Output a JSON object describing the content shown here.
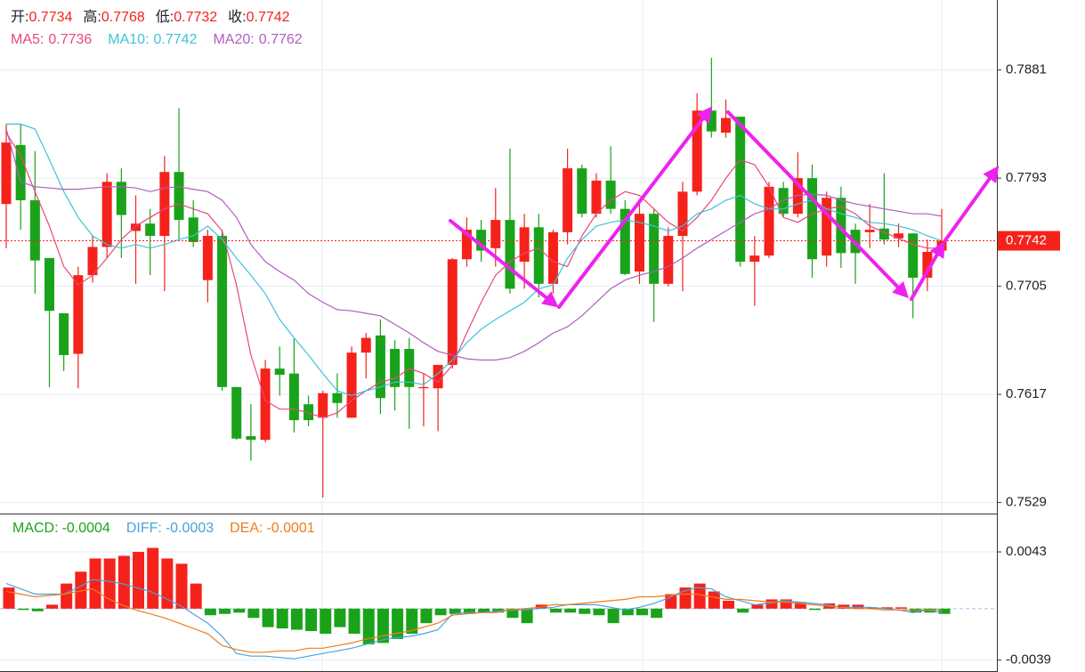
{
  "chart_data": [
    {
      "type": "candlestick",
      "quote": [
        {
          "label": "开:",
          "value": 0.7734
        },
        {
          "label": "高:",
          "value": 0.7768
        },
        {
          "label": "低:",
          "value": 0.7732
        },
        {
          "label": "收:",
          "value": 0.7742
        }
      ],
      "up_color": "#f5221b",
      "down_color": "#1aa31a",
      "open": [
        0.7772,
        0.782,
        0.7775,
        0.7728,
        0.7683,
        0.765,
        0.7714,
        0.7737,
        0.779,
        0.775,
        0.7756,
        0.7746,
        0.7798,
        0.7761,
        0.771,
        0.7746,
        0.7623,
        0.7583,
        0.758,
        0.7638,
        0.7634,
        0.7609,
        0.7598,
        0.7618,
        0.7598,
        0.7651,
        0.7665,
        0.7654,
        0.7654,
        0.7622,
        0.7622,
        0.7641,
        0.7727,
        0.7751,
        0.7736,
        0.7759,
        0.7725,
        0.7753,
        0.7707,
        0.7749,
        0.7801,
        0.7764,
        0.7791,
        0.7768,
        0.7717,
        0.7764,
        0.7707,
        0.7746,
        0.7782,
        0.7848,
        0.783,
        0.7843,
        0.7725,
        0.773,
        0.7785,
        0.7764,
        0.7793,
        0.773,
        0.7777,
        0.7751,
        0.7749,
        0.7752,
        0.7744,
        0.7748,
        0.7712,
        0.7734
      ],
      "high": [
        0.7837,
        0.7837,
        0.7815,
        0.7728,
        0.7683,
        0.7721,
        0.7746,
        0.7797,
        0.7801,
        0.7779,
        0.7768,
        0.7811,
        0.785,
        0.7775,
        0.7751,
        0.7751,
        0.7623,
        0.7609,
        0.7645,
        0.7656,
        0.7663,
        0.7616,
        0.762,
        0.7634,
        0.7656,
        0.7667,
        0.7678,
        0.7661,
        0.7663,
        0.7634,
        0.7641,
        0.7728,
        0.7761,
        0.7759,
        0.7785,
        0.7817,
        0.7764,
        0.7764,
        0.7751,
        0.7817,
        0.7804,
        0.7797,
        0.7819,
        0.7775,
        0.7772,
        0.7768,
        0.7753,
        0.779,
        0.7862,
        0.7891,
        0.7857,
        0.7843,
        0.7746,
        0.779,
        0.779,
        0.7814,
        0.7804,
        0.7782,
        0.7786,
        0.7756,
        0.7772,
        0.7797,
        0.7756,
        0.7748,
        0.7743,
        0.7768
      ],
      "low": [
        0.7736,
        0.7751,
        0.7699,
        0.7623,
        0.7636,
        0.7622,
        0.7708,
        0.7728,
        0.7728,
        0.7707,
        0.7714,
        0.7701,
        0.7743,
        0.7737,
        0.7692,
        0.762,
        0.758,
        0.7563,
        0.7578,
        0.7616,
        0.7586,
        0.7591,
        0.7533,
        0.7598,
        0.7598,
        0.763,
        0.7601,
        0.7604,
        0.7589,
        0.7591,
        0.7587,
        0.7638,
        0.7721,
        0.7725,
        0.7721,
        0.7699,
        0.7703,
        0.7696,
        0.7699,
        0.7739,
        0.7761,
        0.7761,
        0.7764,
        0.7714,
        0.7707,
        0.7676,
        0.7705,
        0.7701,
        0.7779,
        0.7826,
        0.7826,
        0.7721,
        0.7689,
        0.7728,
        0.7761,
        0.7761,
        0.7712,
        0.7721,
        0.772,
        0.7707,
        0.7736,
        0.7739,
        0.7737,
        0.7679,
        0.7701,
        0.7732
      ],
      "close": [
        0.7822,
        0.7775,
        0.7726,
        0.7685,
        0.7649,
        0.7714,
        0.7737,
        0.779,
        0.7763,
        0.7756,
        0.7746,
        0.7798,
        0.7759,
        0.7741,
        0.7746,
        0.7623,
        0.7581,
        0.758,
        0.7638,
        0.7633,
        0.7596,
        0.7596,
        0.7618,
        0.761,
        0.7651,
        0.7663,
        0.7614,
        0.7623,
        0.7623,
        0.7623,
        0.7641,
        0.7727,
        0.7751,
        0.7734,
        0.7759,
        0.7703,
        0.7753,
        0.7707,
        0.7749,
        0.7801,
        0.7764,
        0.7791,
        0.7768,
        0.7715,
        0.7764,
        0.7707,
        0.7746,
        0.7782,
        0.7848,
        0.7831,
        0.7842,
        0.7725,
        0.773,
        0.7786,
        0.7764,
        0.7793,
        0.7727,
        0.7777,
        0.7732,
        0.7732,
        0.7751,
        0.7743,
        0.7748,
        0.7712,
        0.7733,
        0.7742
      ],
      "series": [
        {
          "label": "MA5:",
          "value": 0.7736,
          "color": "#e8477a",
          "values": [
            0.783,
            0.7811,
            0.7782,
            0.7754,
            0.7721,
            0.7706,
            0.7714,
            0.7728,
            0.7743,
            0.7754,
            0.7761,
            0.7768,
            0.7772,
            0.7768,
            0.7764,
            0.775,
            0.7706,
            0.7649,
            0.7612,
            0.7605,
            0.7605,
            0.7602,
            0.7598,
            0.7602,
            0.7612,
            0.762,
            0.7627,
            0.763,
            0.7638,
            0.7634,
            0.7627,
            0.7641,
            0.7667,
            0.7692,
            0.7714,
            0.7725,
            0.7732,
            0.7736,
            0.7725,
            0.7721,
            0.7746,
            0.7764,
            0.7775,
            0.7782,
            0.7779,
            0.7768,
            0.7757,
            0.775,
            0.7761,
            0.7775,
            0.7793,
            0.7808,
            0.7804,
            0.7786,
            0.7761,
            0.7757,
            0.7764,
            0.7768,
            0.777,
            0.7764,
            0.7754,
            0.7749,
            0.7744,
            0.7739,
            0.7736,
            0.7736
          ]
        },
        {
          "label": "MA10:",
          "value": 0.7742,
          "color": "#3fc3d8",
          "values": [
            0.7837,
            0.7837,
            0.7833,
            0.7808,
            0.7782,
            0.7761,
            0.7746,
            0.7739,
            0.7736,
            0.7739,
            0.7736,
            0.7739,
            0.7743,
            0.7746,
            0.7754,
            0.7743,
            0.7728,
            0.7714,
            0.7699,
            0.7678,
            0.7663,
            0.7649,
            0.7634,
            0.762,
            0.7616,
            0.762,
            0.7623,
            0.7627,
            0.7627,
            0.7625,
            0.7634,
            0.7645,
            0.7659,
            0.767,
            0.7678,
            0.7685,
            0.7692,
            0.7703,
            0.7706,
            0.7728,
            0.7743,
            0.7754,
            0.7757,
            0.7759,
            0.7757,
            0.7754,
            0.775,
            0.7754,
            0.7764,
            0.7768,
            0.7775,
            0.7779,
            0.7772,
            0.7768,
            0.7768,
            0.7772,
            0.7775,
            0.7768,
            0.7764,
            0.7761,
            0.7757,
            0.7756,
            0.7754,
            0.7751,
            0.7746,
            0.7742
          ]
        },
        {
          "label": "MA20:",
          "value": 0.7762,
          "color": "#b05ec0",
          "values": [
            0.7833,
            0.779,
            0.7786,
            0.7785,
            0.7784,
            0.7784,
            0.7785,
            0.7786,
            0.7786,
            0.7785,
            0.7782,
            0.7785,
            0.7786,
            0.7784,
            0.7782,
            0.7775,
            0.7761,
            0.7739,
            0.7725,
            0.7717,
            0.771,
            0.7699,
            0.7692,
            0.7686,
            0.7685,
            0.7683,
            0.7681,
            0.7674,
            0.7667,
            0.7659,
            0.7652,
            0.7649,
            0.7646,
            0.7645,
            0.7645,
            0.7647,
            0.7652,
            0.7659,
            0.7667,
            0.7672,
            0.7681,
            0.7692,
            0.7703,
            0.771,
            0.7714,
            0.7717,
            0.7721,
            0.7728,
            0.7736,
            0.7743,
            0.775,
            0.7757,
            0.7764,
            0.7768,
            0.7775,
            0.7779,
            0.778,
            0.7779,
            0.7775,
            0.7772,
            0.777,
            0.7768,
            0.7766,
            0.7764,
            0.7764,
            0.7762
          ]
        }
      ],
      "last_price": 0.7742,
      "last_color": "#f5221b",
      "ylim": [
        0.752,
        0.7938
      ],
      "yticks": [
        0.7881,
        0.7793,
        0.7705,
        0.7617,
        0.7529
      ],
      "grid": true
    },
    {
      "type": "macd",
      "series": [
        {
          "label": "MACD:",
          "value": -0.0004,
          "color": "#1aa31a",
          "values": [
            0.0016,
            -0.0001,
            -0.0002,
            0.0003,
            0.0019,
            0.0028,
            0.0038,
            0.0038,
            0.004,
            0.0043,
            0.0046,
            0.0038,
            0.0034,
            0.0019,
            -0.0005,
            -0.0004,
            -0.0003,
            -0.0007,
            -0.0014,
            -0.0015,
            -0.0016,
            -0.0017,
            -0.0019,
            -0.0014,
            -0.0019,
            -0.0027,
            -0.0026,
            -0.0023,
            -0.0019,
            -0.0011,
            -0.0005,
            -0.0004,
            -0.0004,
            -0.0003,
            -0.0003,
            -0.0007,
            -0.0011,
            0.0003,
            -0.0003,
            -0.0003,
            -0.0004,
            -0.0005,
            -0.0011,
            -0.0005,
            -0.0005,
            -0.0007,
            0.0011,
            0.0016,
            0.0019,
            0.0013,
            0.0006,
            -0.0003,
            0.0003,
            0.0007,
            0.0007,
            0.0005,
            -0.0001,
            0.0004,
            0.0003,
            0.0003,
            0.0001,
            0.0001,
            0.0001,
            -0.0003,
            -0.0003,
            -0.0004
          ]
        },
        {
          "label": "DIFF:",
          "value": -0.0003,
          "color": "#4aa3df",
          "values": [
            0.0019,
            0.0015,
            0.0011,
            0.0011,
            0.0011,
            0.0016,
            0.0022,
            0.0021,
            0.0019,
            0.0016,
            0.0013,
            0.0008,
            0.0003,
            -0.0004,
            -0.0011,
            -0.0021,
            -0.0034,
            -0.0036,
            -0.0036,
            -0.0037,
            -0.0038,
            -0.0036,
            -0.0034,
            -0.0032,
            -0.003,
            -0.0027,
            -0.0024,
            -0.0022,
            -0.0021,
            -0.0019,
            -0.0016,
            -0.0004,
            -0.0003,
            -0.0003,
            -0.0002,
            -0.0001,
            -0.0001,
            0,
            0.0001,
            0.0003,
            0.0003,
            0.0003,
            0.0001,
            -0.0001,
            0.0001,
            0.0004,
            0.0008,
            0.0013,
            0.0016,
            0.0015,
            0.0009,
            0.0006,
            0.0003,
            0.0004,
            0.0006,
            0.0005,
            0.0004,
            0.0003,
            0.0001,
            0.0001,
            0.0001,
            0,
            -0.0001,
            -0.0003,
            -0.0001,
            -0.0003
          ]
        },
        {
          "label": "DEA:",
          "value": -0.0001,
          "color": "#f07d1a",
          "values": [
            0.0013,
            0.0011,
            0.0009,
            0.001,
            0.0011,
            0.0013,
            0.0015,
            0.0008,
            0.0003,
            -0.0001,
            -0.0004,
            -0.0007,
            -0.0011,
            -0.0015,
            -0.0019,
            -0.0028,
            -0.0031,
            -0.0033,
            -0.0033,
            -0.0032,
            -0.0032,
            -0.003,
            -0.003,
            -0.0028,
            -0.0026,
            -0.0023,
            -0.0021,
            -0.0019,
            -0.0017,
            -0.0014,
            -0.0011,
            -0.0005,
            -0.0004,
            -0.0003,
            -0.0003,
            -0.0001,
            0,
            0.0001,
            0.0003,
            0.0003,
            0.0004,
            0.0005,
            0.0006,
            0.0007,
            0.0009,
            0.0009,
            0.001,
            0.0011,
            0.0011,
            0.0009,
            0.0007,
            0.0007,
            0.0006,
            0.0005,
            0.0005,
            0.0004,
            0.0003,
            0.0002,
            0.0001,
            0,
            0,
            -0.0001,
            -0.0001,
            -0.0001,
            -0.0001,
            -0.0001
          ]
        }
      ],
      "up_color": "#f5221b",
      "down_color": "#1aa31a",
      "ylim": [
        -0.0048,
        0.007
      ],
      "yticks": [
        0.0043,
        -0.0039
      ]
    }
  ]
}
